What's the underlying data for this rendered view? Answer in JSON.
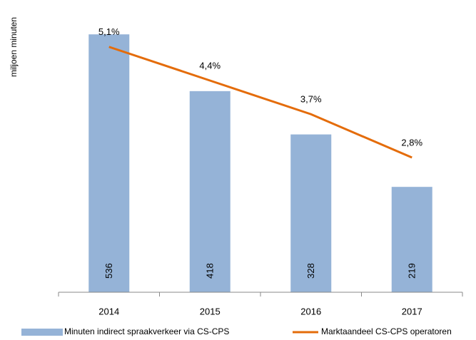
{
  "chart_data": {
    "type": "bar_line",
    "y_label": "miljoen minuten",
    "categories": [
      "2014",
      "2015",
      "2016",
      "2017"
    ],
    "ylim": [
      0,
      600
    ],
    "y2lim": [
      0,
      6
    ],
    "legend": "bottom",
    "series": [
      {
        "name": "Minuten indirect spraakverkeer via CS-CPS",
        "type": "bar",
        "color": "#95b3d7",
        "values": [
          536,
          418,
          328,
          219
        ]
      },
      {
        "name": "Marktaandeel CS-CPS operatoren",
        "type": "line",
        "axis": "y2",
        "color": "#e46c0a",
        "values": [
          5.1,
          4.4,
          3.7,
          2.8
        ],
        "value_labels": [
          "5,1%",
          "4,4%",
          "3,7%",
          "2,8%"
        ]
      }
    ]
  }
}
